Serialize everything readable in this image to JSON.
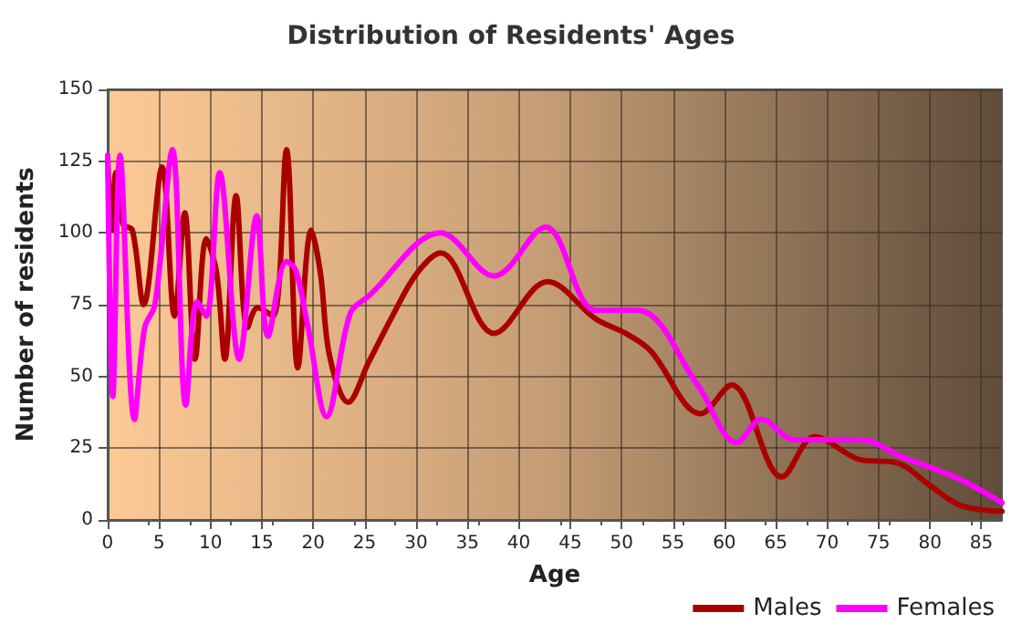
{
  "chart_data": {
    "type": "line",
    "title": "Distribution of Residents' Ages",
    "xlabel": "Age",
    "ylabel": "Number of residents",
    "xlim": [
      0,
      87
    ],
    "xticks": [
      0,
      5,
      10,
      15,
      20,
      25,
      30,
      35,
      40,
      45,
      50,
      55,
      60,
      65,
      70,
      75,
      80,
      85
    ],
    "ylim": [
      0,
      150
    ],
    "yticks": [
      0,
      25,
      50,
      75,
      100,
      125,
      150
    ],
    "grid": true,
    "legend": "bottom right",
    "marker": "none",
    "line_style": "solid",
    "series": [
      {
        "name": "Males",
        "color": "#aa0000",
        "x": [
          0,
          0.4,
          0.8,
          1.5,
          2.4,
          3.5,
          5.3,
          6.5,
          7.5,
          8.5,
          9.6,
          10.6,
          11.4,
          12.5,
          13.6,
          14.6,
          16.1,
          17.4,
          18.5,
          19.8,
          20.7,
          21.6,
          23.4,
          25.4,
          27.7,
          30.1,
          32.4,
          37.6,
          42.8,
          47.5,
          50.4,
          52.8,
          57.7,
          60.7,
          65.6,
          68.8,
          73.2,
          76.7,
          80,
          83,
          87
        ],
        "values": [
          126,
          101,
          121,
          103,
          101,
          75,
          123,
          71,
          107,
          56,
          98,
          86,
          56,
          113,
          67,
          74,
          71,
          129,
          53,
          101,
          86,
          57,
          41,
          55,
          71,
          86,
          93,
          65,
          83,
          70,
          65,
          59,
          37,
          47,
          15,
          29,
          21,
          20,
          12,
          5,
          3
        ]
      },
      {
        "name": "Females",
        "color": "#ff00ff",
        "x": [
          0,
          0.5,
          1.2,
          2.6,
          3.6,
          4.6,
          6.3,
          7.6,
          8.7,
          9.6,
          10.9,
          12.8,
          14.5,
          15.6,
          17.4,
          18.3,
          19.5,
          21.3,
          23.6,
          25.4,
          32.4,
          37.6,
          42.6,
          47.5,
          51.6,
          57.4,
          61.2,
          63.6,
          66.8,
          73.2,
          77.3,
          83,
          87
        ],
        "values": [
          127,
          43,
          127,
          35,
          67,
          75,
          129,
          40,
          76,
          71,
          121,
          56,
          106,
          64,
          90,
          87,
          67,
          36,
          72,
          78,
          100,
          85,
          102,
          73,
          73,
          47,
          27,
          35,
          28,
          28,
          22,
          14,
          6
        ]
      }
    ]
  }
}
